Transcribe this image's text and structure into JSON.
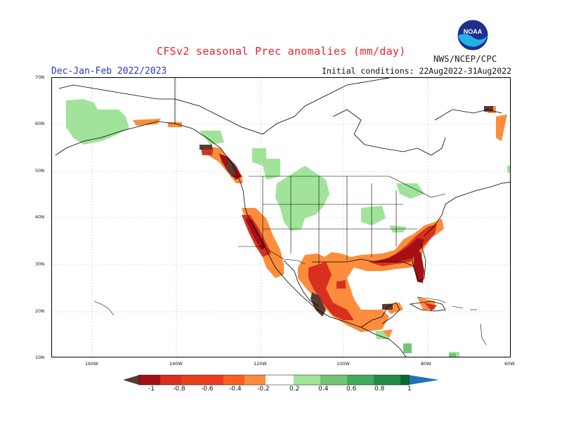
{
  "header": {
    "title": "CFSv2 seasonal Prec anomalies (mm/day)",
    "season": "Dec-Jan-Feb 2022/2023",
    "initial_conditions": "Initial conditions: 22Aug2022-31Aug2022",
    "agency": "NWS/NCEP/CPC",
    "logo_text": "NOAA"
  },
  "map": {
    "lat_labels": [
      "70N",
      "60N",
      "50N",
      "40N",
      "30N",
      "20N",
      "10N"
    ],
    "lon_labels": [
      "160W",
      "140W",
      "120W",
      "100W",
      "80W",
      "60W"
    ],
    "projection": "lat-lon",
    "grid_style": "dotted"
  },
  "legend": {
    "labels": [
      "-1",
      "-0.8",
      "-0.6",
      "-0.4",
      "-0.2",
      "0.2",
      "0.4",
      "0.6",
      "0.8",
      "1"
    ],
    "colors": [
      "#5a3a32",
      "#a50f15",
      "#d7301f",
      "#f03b20",
      "#fc4e2a",
      "#fd8d3c",
      "#ffffff",
      "#a1e39b",
      "#74c476",
      "#41ab5d",
      "#238b45",
      "#006d2c",
      "#2171b5"
    ],
    "colors_meaning": "dry (brown/red/orange) to wet (green/blue); white = near zero"
  },
  "colors": {
    "title_red": "#e8232a",
    "season_blue": "#2a36c9",
    "dry_orange": "#fd8d3c",
    "dry_red": "#d7301f",
    "dry_darkred": "#a50f15",
    "dry_brown": "#5a3a32",
    "wet_lightgreen": "#a1e39b",
    "wet_green": "#74c476"
  }
}
